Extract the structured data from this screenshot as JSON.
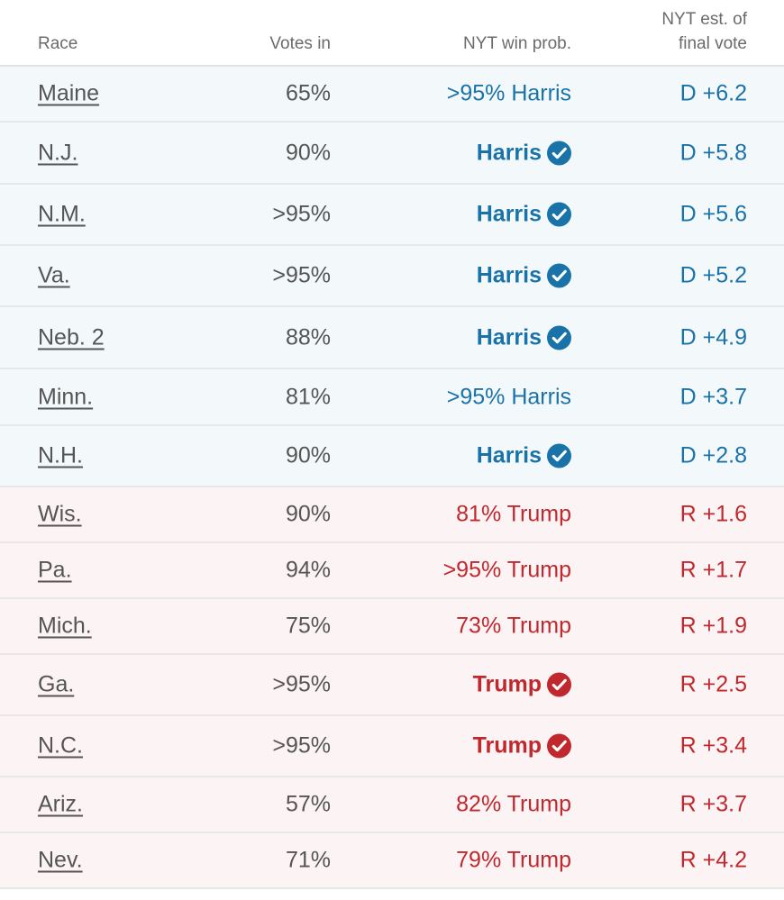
{
  "headers": {
    "race": "Race",
    "votes": "Votes in",
    "prob": "NYT win prob.",
    "final_line1": "NYT est. of",
    "final_line2": "final vote"
  },
  "colors": {
    "dem": "#1a73a8",
    "rep": "#c0282e",
    "dem_bg": "#f3f8fb",
    "rep_bg": "#fcf4f4"
  },
  "rows": [
    {
      "race": "Maine",
      "votes": "65%",
      "prob": ">95% Harris",
      "called": false,
      "final": "D +6.2",
      "party": "dem"
    },
    {
      "race": "N.J.",
      "votes": "90%",
      "prob": "Harris",
      "called": true,
      "final": "D +5.8",
      "party": "dem"
    },
    {
      "race": "N.M.",
      "votes": ">95%",
      "prob": "Harris",
      "called": true,
      "final": "D +5.6",
      "party": "dem"
    },
    {
      "race": "Va.",
      "votes": ">95%",
      "prob": "Harris",
      "called": true,
      "final": "D +5.2",
      "party": "dem"
    },
    {
      "race": "Neb. 2",
      "votes": "88%",
      "prob": "Harris",
      "called": true,
      "final": "D +4.9",
      "party": "dem"
    },
    {
      "race": "Minn.",
      "votes": "81%",
      "prob": ">95% Harris",
      "called": false,
      "final": "D +3.7",
      "party": "dem"
    },
    {
      "race": "N.H.",
      "votes": "90%",
      "prob": "Harris",
      "called": true,
      "final": "D +2.8",
      "party": "dem"
    },
    {
      "race": "Wis.",
      "votes": "90%",
      "prob": "81% Trump",
      "called": false,
      "final": "R +1.6",
      "party": "rep"
    },
    {
      "race": "Pa.",
      "votes": "94%",
      "prob": ">95% Trump",
      "called": false,
      "final": "R +1.7",
      "party": "rep"
    },
    {
      "race": "Mich.",
      "votes": "75%",
      "prob": "73% Trump",
      "called": false,
      "final": "R +1.9",
      "party": "rep"
    },
    {
      "race": "Ga.",
      "votes": ">95%",
      "prob": "Trump",
      "called": true,
      "final": "R +2.5",
      "party": "rep"
    },
    {
      "race": "N.C.",
      "votes": ">95%",
      "prob": "Trump",
      "called": true,
      "final": "R +3.4",
      "party": "rep"
    },
    {
      "race": "Ariz.",
      "votes": "57%",
      "prob": "82% Trump",
      "called": false,
      "final": "R +3.7",
      "party": "rep"
    },
    {
      "race": "Nev.",
      "votes": "71%",
      "prob": "79% Trump",
      "called": false,
      "final": "R +4.2",
      "party": "rep"
    }
  ]
}
